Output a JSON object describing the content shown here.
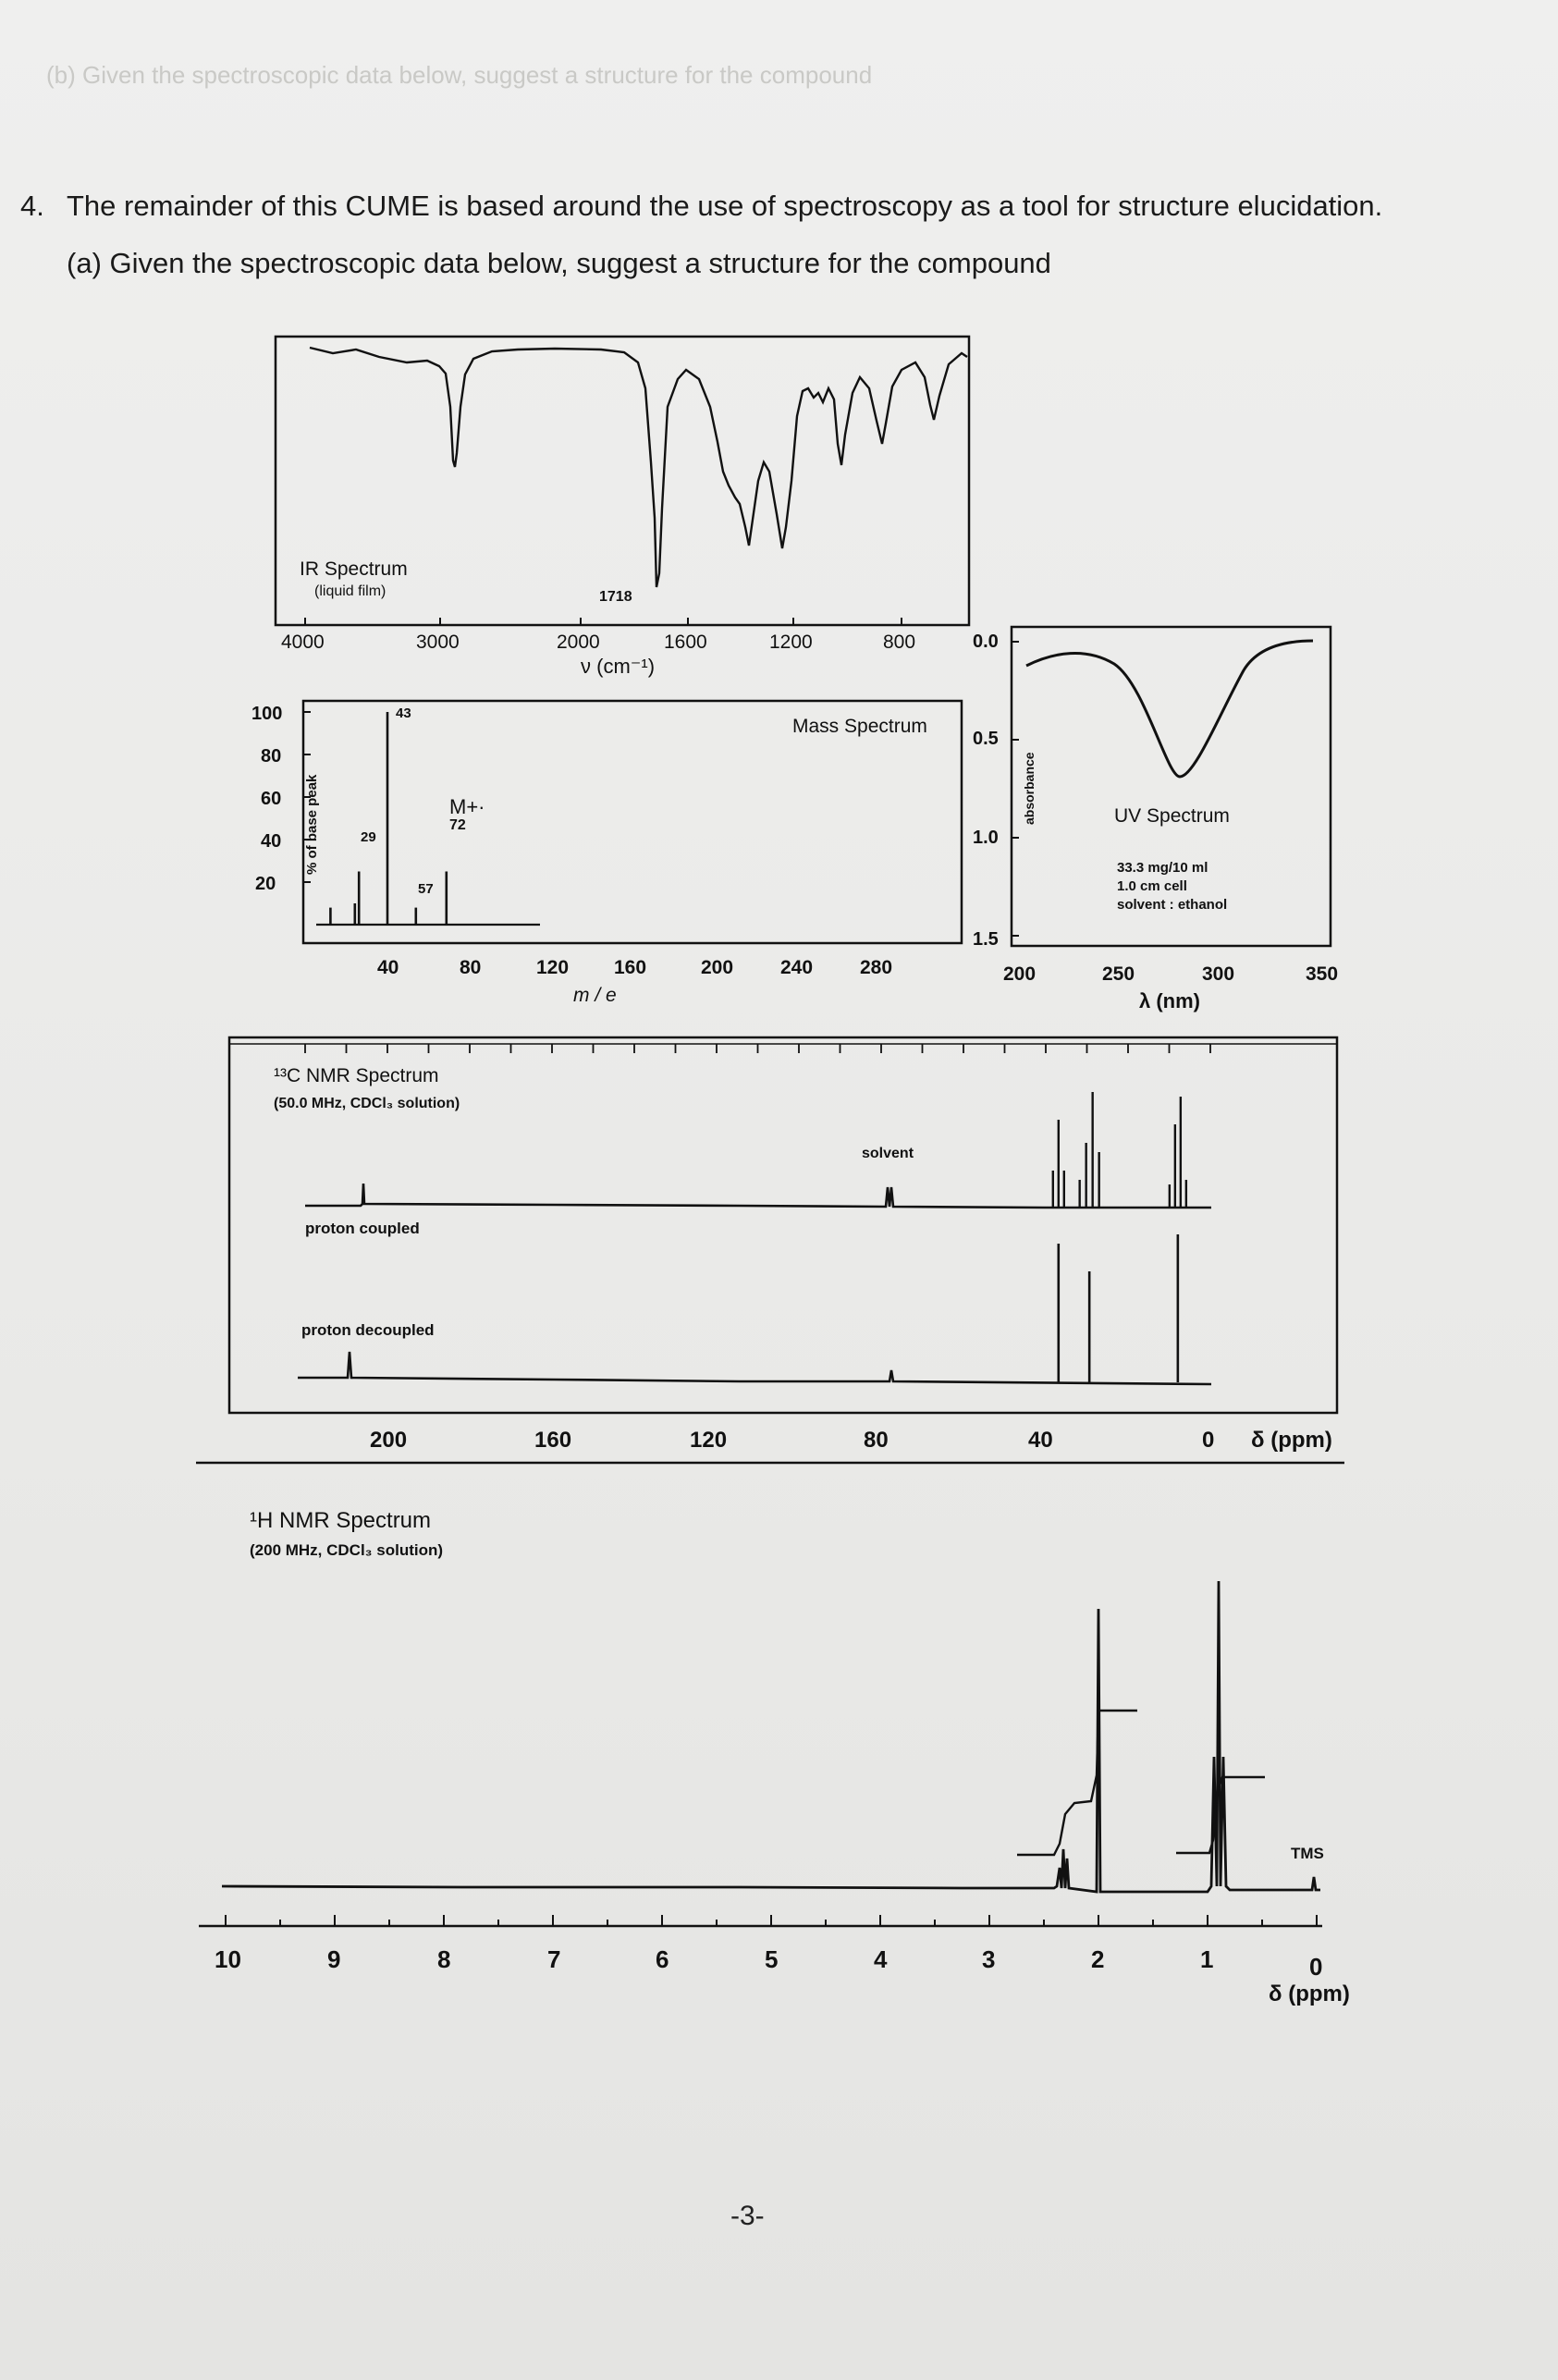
{
  "ghost_header": "(b) Given the spectroscopic data below, suggest a structure for the compound",
  "question": {
    "number": "4.",
    "intro": "The remainder of this CUME is based around the use of spectroscopy as a tool for structure elucidation.",
    "part_a": "(a) Given the spectroscopic data below, suggest a structure for the compound"
  },
  "ir": {
    "title": "IR Spectrum",
    "subtitle": "(liquid film)",
    "peak_label": "1718",
    "x_ticks": [
      "4000",
      "3000",
      "2000",
      "1600",
      "1200",
      "800"
    ],
    "xlabel": "ν (cm⁻¹)"
  },
  "mass": {
    "title": "Mass Spectrum",
    "ylabel": "% of base peak",
    "y_ticks": [
      "100",
      "80",
      "60",
      "40",
      "20"
    ],
    "x_ticks": [
      "40",
      "80",
      "120",
      "160",
      "200",
      "240",
      "280"
    ],
    "xlabel": "m / e",
    "molecular_ion": "M+·",
    "peak_labels": [
      "43",
      "29",
      "72",
      "57"
    ]
  },
  "uv": {
    "title": "UV Spectrum",
    "conc": "33.3 mg/10 ml",
    "cell": "1.0 cm cell",
    "solvent": "solvent : ethanol",
    "ylabel": "absorbance",
    "y_ticks": [
      "0.0",
      "0.5",
      "1.0",
      "1.5"
    ],
    "x_ticks": [
      "200",
      "250",
      "300",
      "350"
    ],
    "xlabel": "λ (nm)"
  },
  "c13": {
    "title": "¹³C NMR Spectrum",
    "conditions": "(50.0 MHz, CDCl₃ solution)",
    "solvent_label": "solvent",
    "coupled_label": "proton coupled",
    "decoupled_label": "proton decoupled",
    "x_ticks": [
      "200",
      "160",
      "120",
      "80",
      "40",
      "0"
    ],
    "xlabel": "δ (ppm)"
  },
  "h1": {
    "title": "¹H NMR Spectrum",
    "conditions": "(200 MHz, CDCl₃ solution)",
    "tms_label": "TMS",
    "x_ticks": [
      "10",
      "9",
      "8",
      "7",
      "6",
      "5",
      "4",
      "3",
      "2",
      "1",
      "0"
    ],
    "xlabel": "δ (ppm)"
  },
  "chart_data": [
    {
      "type": "line",
      "title": "IR Spectrum",
      "xlabel": "ν (cm⁻¹)",
      "x_direction": "decreasing",
      "xlim": [
        4000,
        650
      ],
      "absorption_bands_cm1": [
        2975,
        1718,
        1460,
        1420,
        1365,
        1170,
        1110,
        945,
        760
      ],
      "strongest_band_cm1": 1718
    },
    {
      "type": "bar",
      "title": "Mass Spectrum",
      "xlabel": "m / e",
      "ylabel": "% of base peak",
      "ylim": [
        0,
        100
      ],
      "x": [
        15,
        27,
        29,
        43,
        57,
        72
      ],
      "values": [
        8,
        10,
        25,
        100,
        8,
        25
      ],
      "molecular_ion_mz": 72
    },
    {
      "type": "line",
      "title": "UV Spectrum",
      "xlabel": "λ (nm)",
      "ylabel": "absorbance",
      "xlim": [
        200,
        350
      ],
      "ylim": [
        1.5,
        0.0
      ],
      "lambda_max_nm": 275,
      "absorbance_at_max": 0.65
    },
    {
      "type": "bar",
      "title": "¹³C NMR Spectrum (proton decoupled)",
      "xlabel": "δ (ppm)",
      "xlim": [
        220,
        0
      ],
      "x": [
        209,
        77,
        36.9,
        29.4,
        7.9
      ],
      "values": [
        0.08,
        0.1,
        0.75,
        0.6,
        0.8
      ]
    },
    {
      "type": "line",
      "title": "¹H NMR Spectrum",
      "xlabel": "δ (ppm)",
      "xlim": [
        10,
        0
      ],
      "peaks_ppm": [
        2.44,
        2.13,
        1.05,
        0.0
      ],
      "multiplicity": [
        "quartet",
        "singlet",
        "triplet",
        "singlet (TMS)"
      ],
      "integration_ratio": [
        2,
        3,
        3
      ]
    }
  ]
}
